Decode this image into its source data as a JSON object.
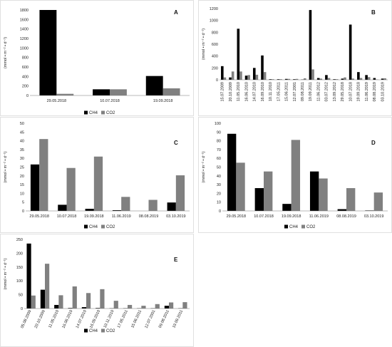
{
  "colors": {
    "CH4": "#000000",
    "CO2": "#808080"
  },
  "legend": [
    "CH4",
    "CO2"
  ],
  "ylabel": "(mmol • m⁻² • d⁻¹)",
  "chart_data": [
    {
      "id": "A",
      "type": "bar",
      "title": "A",
      "categories": [
        "29.05.2018",
        "10.07.2018",
        "19.09.2018"
      ],
      "series": [
        {
          "name": "CH4",
          "values": [
            1800,
            130,
            410
          ]
        },
        {
          "name": "CO2",
          "values": [
            35,
            130,
            150
          ]
        }
      ],
      "ylim": [
        0,
        1800
      ],
      "yticks": [
        0,
        200,
        400,
        600,
        800,
        1000,
        1200,
        1400,
        1600,
        1800
      ],
      "ylabel": "(mmol • m⁻² • d⁻¹)",
      "legend": "bottom"
    },
    {
      "id": "B",
      "type": "bar",
      "title": "B",
      "categories": [
        "15.07.2009",
        "20.10.2009",
        "11.05.2010",
        "16.06.2010",
        "14.07.2010",
        "16.09.2010",
        "10.11.2010",
        "17.05.2011",
        "15.06.2011",
        "12.07.2001",
        "09.08.2011",
        "19.09.2011",
        "11.06.2012",
        "03.07.2012",
        "13.09.2012",
        "29.05.2018",
        "10.07.2018",
        "19.09.2018",
        "11.06.2019",
        "08.08.2019",
        "03.10.2019"
      ],
      "series": [
        {
          "name": "CH4",
          "values": [
            230,
            40,
            860,
            70,
            200,
            410,
            10,
            10,
            15,
            10,
            5,
            1175,
            30,
            80,
            10,
            20,
            930,
            130,
            80,
            30,
            20
          ]
        },
        {
          "name": "CO2",
          "values": [
            40,
            140,
            140,
            80,
            85,
            130,
            10,
            10,
            15,
            15,
            25,
            175,
            20,
            30,
            10,
            40,
            20,
            30,
            45,
            5,
            25
          ]
        }
      ],
      "ylim": [
        0,
        1200
      ],
      "yticks": [
        0,
        200,
        400,
        600,
        800,
        1000,
        1200
      ],
      "ylabel": "(mmol • m⁻² • d⁻¹)",
      "legend": "none"
    },
    {
      "id": "C",
      "type": "bar",
      "title": "C",
      "categories": [
        "29.05.2018",
        "10.07.2018",
        "19.09.2018",
        "11.06.2019",
        "08.08.2019",
        "03.10.2019"
      ],
      "series": [
        {
          "name": "CH4",
          "values": [
            26.5,
            3.5,
            1.2,
            0.4,
            0,
            4.8
          ]
        },
        {
          "name": "CO2",
          "values": [
            41,
            24.5,
            31,
            8,
            6.3,
            20.3
          ]
        }
      ],
      "ylim": [
        0,
        50
      ],
      "yticks": [
        0,
        5,
        10,
        15,
        20,
        25,
        30,
        35,
        40,
        45,
        50
      ],
      "ylabel": "(mmol • m⁻² • d⁻¹)",
      "legend": "bottom"
    },
    {
      "id": "D",
      "type": "bar",
      "title": "D",
      "categories": [
        "29.05.2018",
        "10.07.2018",
        "19.09.2018",
        "11.06.2019",
        "08.08.2019",
        "03.10.2019"
      ],
      "series": [
        {
          "name": "CH4",
          "values": [
            88,
            26,
            8,
            45,
            2,
            0.5
          ]
        },
        {
          "name": "CO2",
          "values": [
            55,
            45,
            81,
            37,
            26,
            21
          ]
        }
      ],
      "ylim": [
        0,
        100
      ],
      "yticks": [
        0,
        10,
        20,
        30,
        40,
        50,
        60,
        70,
        80,
        90,
        100
      ],
      "ylabel": "(mmol • m⁻² • d⁻¹)",
      "legend": "bottom"
    },
    {
      "id": "E",
      "type": "bar",
      "title": "E",
      "categories": [
        "05.08.2009",
        "20.10.2009",
        "11.05.2010",
        "16.06.2010",
        "14.07.2010",
        "16.09.2010",
        "10.11.2010",
        "17.05.2011",
        "15.06.2011",
        "12.07.2001",
        "09.08.2011",
        "19.09.2011"
      ],
      "series": [
        {
          "name": "CH4",
          "values": [
            235,
            68,
            13,
            2,
            5,
            2,
            1,
            1,
            1,
            1,
            10,
            1
          ]
        },
        {
          "name": "CO2",
          "values": [
            47,
            162,
            48,
            80,
            56,
            70,
            28,
            13,
            10,
            16,
            22,
            23
          ]
        }
      ],
      "ylim": [
        0,
        250
      ],
      "yticks": [
        0,
        50,
        100,
        150,
        200,
        250
      ],
      "ylabel": "(mmol • m⁻² • d⁻¹)",
      "legend": "bottom"
    }
  ]
}
